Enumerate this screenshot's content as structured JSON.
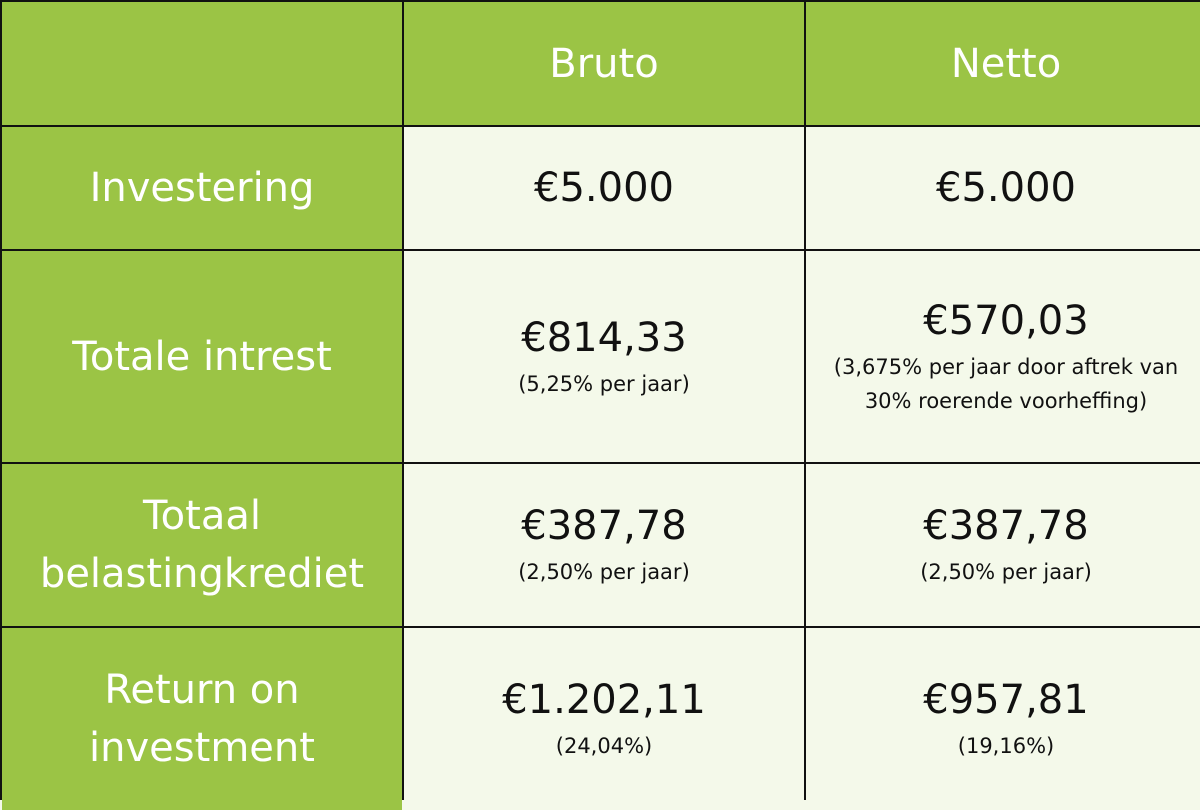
{
  "colors": {
    "header_bg": "#9bc445",
    "cell_bg": "#f4f9ea",
    "border": "#111111"
  },
  "table": {
    "headers": [
      "",
      "Bruto",
      "Netto"
    ],
    "rows": [
      {
        "label": "Investering",
        "bruto": {
          "value": "€5.000",
          "note": ""
        },
        "netto": {
          "value": "€5.000",
          "note": ""
        }
      },
      {
        "label": "Totale intrest",
        "bruto": {
          "value": "€814,33",
          "note": "(5,25% per jaar)"
        },
        "netto": {
          "value": "€570,03",
          "note": "(3,675% per jaar door aftrek van 30% roerende voorheffing)"
        }
      },
      {
        "label": "Totaal belastingkrediet",
        "bruto": {
          "value": "€387,78",
          "note": "(2,50% per jaar)"
        },
        "netto": {
          "value": "€387,78",
          "note": "(2,50% per jaar)"
        }
      },
      {
        "label": "Return on investment",
        "bruto": {
          "value": "€1.202,11",
          "note": "(24,04%)"
        },
        "netto": {
          "value": "€957,81",
          "note": "(19,16%)"
        }
      }
    ]
  }
}
